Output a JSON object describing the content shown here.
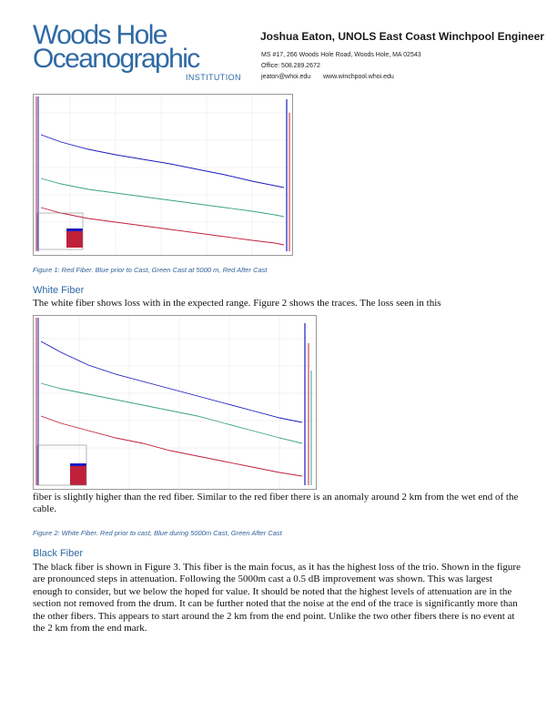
{
  "header": {
    "logo_line1": "Woods Hole",
    "logo_line2": "Oceanographic",
    "logo_sub": "INSTITUTION",
    "author": "Joshua Eaton, UNOLS East Coast Winchpool Engineer",
    "address": "MS #17, 266 Woods Hole Road, Woods Hole, MA 02543",
    "office": "Office: 508.289.2672",
    "email": "jeaton@whoi.edu",
    "website": "www.winchpool.whoi.edu"
  },
  "figure1": {
    "caption": "Figure 1: Red Fiber. Blue prior to Cast, Green Cast at 5000 m, Red After Cast",
    "colors": {
      "blue": "#1a1ac0",
      "green": "#3aa088",
      "red": "#c0203a"
    }
  },
  "section_white": {
    "heading": "White Fiber",
    "text1": "The white fiber shows loss with in the expected range. Figure 2 shows the traces. The loss seen in this",
    "text2": "fiber is slightly higher than the red fiber. Similar to the red fiber there is an anomaly around 2 km from the wet end of the cable."
  },
  "figure2": {
    "caption": "Figure 2: White Fiber. Red prior to cast, Blue during 5000m Cast, Green After Cast"
  },
  "section_black": {
    "heading": "Black Fiber",
    "text": "The black fiber is shown in Figure 3. This fiber is the main focus, as it has the highest loss of the trio. Shown in the figure are pronounced steps in attenuation. Following the 5000m cast a 0.5 dB improvement was shown. This was largest enough to consider, but we below the hoped for value. It should be noted that the highest levels of attenuation are in the section not removed from the drum. It can be further noted that the noise at the end of the trace is significantly more than the other fibers. This appears to start around the 2 km from the end point. Unlike the two other fibers there is no event at the 2 km from the end mark."
  }
}
